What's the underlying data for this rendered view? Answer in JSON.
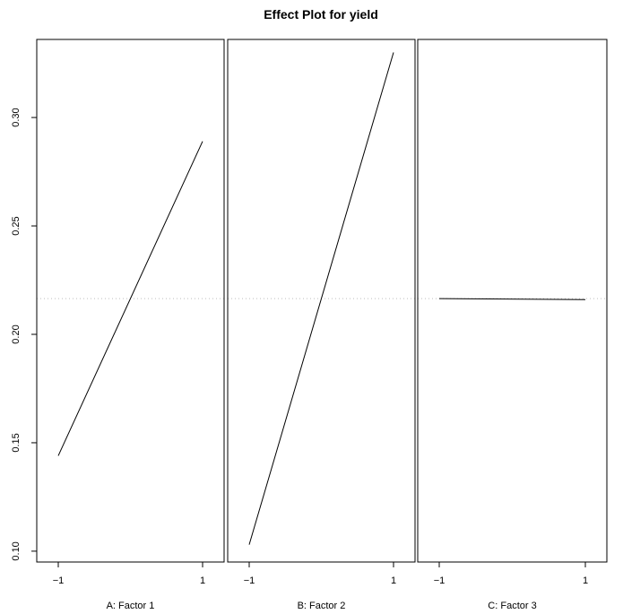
{
  "chart_data": {
    "type": "line",
    "title": "Effect Plot for yield",
    "ylim": [
      0.095,
      0.336
    ],
    "y_ticks": [
      0.1,
      0.15,
      0.2,
      0.25,
      0.3
    ],
    "y_tick_labels": [
      "0.10",
      "0.15",
      "0.20",
      "0.25",
      "0.30"
    ],
    "x_ticks": [
      -1,
      1
    ],
    "x_tick_labels": [
      "−1",
      "1"
    ],
    "grand_mean": 0.2165,
    "grand_mean_style": "dotted gray",
    "grid": false,
    "panels": [
      {
        "xlabel": "A: Factor 1",
        "x": [
          -1,
          1
        ],
        "y": [
          0.144,
          0.289
        ]
      },
      {
        "xlabel": "B: Factor 2",
        "x": [
          -1,
          1
        ],
        "y": [
          0.103,
          0.33
        ]
      },
      {
        "xlabel": "C: Factor 3",
        "x": [
          -1,
          1
        ],
        "y": [
          0.2165,
          0.216
        ]
      }
    ]
  }
}
